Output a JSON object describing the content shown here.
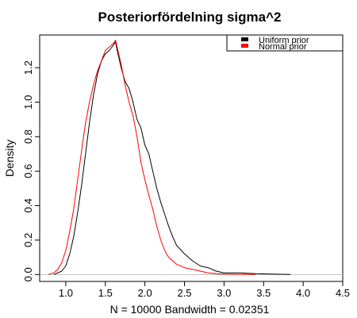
{
  "chart_data": {
    "type": "line",
    "title": "Posteriorfördelning sigma^2",
    "xlabel": "N = 10000   Bandwidth = 0.02351",
    "ylabel": "Density",
    "xlim": [
      0.67,
      4.5
    ],
    "ylim": [
      -0.04,
      1.39
    ],
    "x_ticks": [
      "1.0",
      "1.5",
      "2.0",
      "2.5",
      "3.0",
      "3.5",
      "4.0",
      "4.5"
    ],
    "y_ticks": [
      "0.0",
      "0.2",
      "0.4",
      "0.6",
      "0.8",
      "1.0",
      "1.2"
    ],
    "grid": false,
    "baseline": {
      "y": 0,
      "color": "#bebebe"
    },
    "legend": {
      "position": "top-right"
    },
    "series": [
      {
        "name": "Uniform prior",
        "color": "#000000",
        "x": [
          0.85,
          0.95,
          1.0,
          1.05,
          1.1,
          1.15,
          1.2,
          1.25,
          1.3,
          1.35,
          1.4,
          1.45,
          1.5,
          1.55,
          1.6,
          1.63,
          1.65,
          1.7,
          1.75,
          1.8,
          1.85,
          1.9,
          1.95,
          2.0,
          2.05,
          2.1,
          2.15,
          2.2,
          2.25,
          2.3,
          2.35,
          2.4,
          2.5,
          2.6,
          2.7,
          2.8,
          2.9,
          3.0,
          3.2,
          3.4,
          3.6,
          3.84
        ],
        "y": [
          0.0,
          0.02,
          0.05,
          0.12,
          0.22,
          0.36,
          0.52,
          0.7,
          0.88,
          1.04,
          1.16,
          1.24,
          1.28,
          1.3,
          1.33,
          1.35,
          1.3,
          1.2,
          1.12,
          1.08,
          1.0,
          0.9,
          0.85,
          0.75,
          0.7,
          0.6,
          0.5,
          0.42,
          0.35,
          0.28,
          0.22,
          0.17,
          0.12,
          0.08,
          0.05,
          0.04,
          0.02,
          0.01,
          0.01,
          0.005,
          0.003,
          0.0
        ]
      },
      {
        "name": "Normal prior",
        "color": "#ff0000",
        "x": [
          0.78,
          0.85,
          0.9,
          0.95,
          1.0,
          1.05,
          1.1,
          1.15,
          1.2,
          1.25,
          1.3,
          1.35,
          1.4,
          1.45,
          1.5,
          1.55,
          1.6,
          1.63,
          1.65,
          1.7,
          1.75,
          1.8,
          1.85,
          1.9,
          1.95,
          2.0,
          2.05,
          2.1,
          2.15,
          2.2,
          2.25,
          2.3,
          2.35,
          2.4,
          2.5,
          2.6,
          2.7,
          2.8,
          2.9,
          3.0,
          3.2,
          3.4
        ],
        "y": [
          0.0,
          0.01,
          0.03,
          0.07,
          0.14,
          0.25,
          0.38,
          0.55,
          0.72,
          0.88,
          1.0,
          1.1,
          1.18,
          1.24,
          1.3,
          1.32,
          1.34,
          1.36,
          1.32,
          1.22,
          1.1,
          1.0,
          0.92,
          0.8,
          0.65,
          0.55,
          0.46,
          0.38,
          0.28,
          0.2,
          0.14,
          0.1,
          0.08,
          0.06,
          0.04,
          0.03,
          0.02,
          0.01,
          0.005,
          0.003,
          0.001,
          0.0
        ]
      }
    ]
  }
}
